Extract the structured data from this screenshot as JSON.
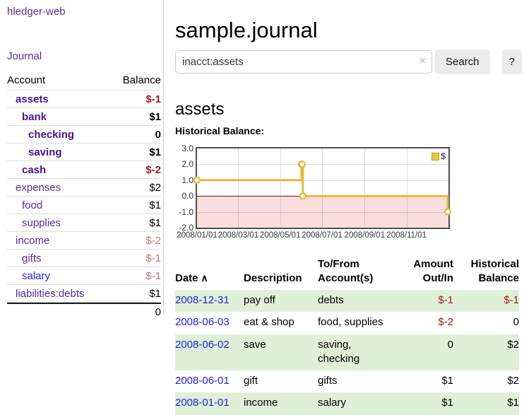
{
  "colors": {
    "link_purple": "#552e91",
    "matched_purple": "#4a1486",
    "link_blue": "#2222dd",
    "negative_red": "#9a1c1c",
    "negative_faded": "#c0706e",
    "row_stripe_green": "#dff0d8",
    "chart_line_gold": "#e3b944",
    "chart_negative_pink": "#fbdddd",
    "chart_zero_line": "#a00000",
    "button_gray": "#ececec"
  },
  "icons": {
    "sort_ascending": "∧",
    "clear_search": "×"
  },
  "sidebar": {
    "app_title": "hledger-web",
    "journal_label": "Journal",
    "accounts": {
      "headers": {
        "account": "Account",
        "balance": "Balance"
      },
      "rows": [
        {
          "name": "assets",
          "depth": 1,
          "match": true,
          "balance": "$-1",
          "balance_style": "neg-strong"
        },
        {
          "name": "bank",
          "depth": 2,
          "match": true,
          "balance": "$1",
          "balance_style": "plain"
        },
        {
          "name": "checking",
          "depth": 3,
          "match": true,
          "balance": "0",
          "balance_style": "plain"
        },
        {
          "name": "saving",
          "depth": 3,
          "match": true,
          "balance": "$1",
          "balance_style": "plain"
        },
        {
          "name": "cash",
          "depth": 2,
          "match": true,
          "balance": "$-2",
          "balance_style": "neg-strong"
        },
        {
          "name": "expenses",
          "depth": 1,
          "match": false,
          "balance": "$2",
          "balance_style": "plain"
        },
        {
          "name": "food",
          "depth": 2,
          "match": false,
          "balance": "$1",
          "balance_style": "plain"
        },
        {
          "name": "supplies",
          "depth": 2,
          "match": false,
          "balance": "$1",
          "balance_style": "plain"
        },
        {
          "name": "income",
          "depth": 1,
          "match": false,
          "balance": "$-2",
          "balance_style": "neg-faded"
        },
        {
          "name": "gifts",
          "depth": 2,
          "match": false,
          "balance": "$-1",
          "balance_style": "neg-faded"
        },
        {
          "name": "salary",
          "depth": 2,
          "match": false,
          "balance": "$-1",
          "balance_style": "neg-faded",
          "link_blue": true
        },
        {
          "name": "liabilities:debts",
          "depth": 1,
          "match": false,
          "balance": "$1",
          "balance_style": "plain"
        }
      ],
      "total": "0"
    }
  },
  "main": {
    "title": "sample.journal",
    "search": {
      "value": "inacct:assets",
      "button_label": "Search",
      "help_label": "?"
    },
    "account_heading": "assets",
    "chart_label": "Historical Balance:"
  },
  "chart_data": {
    "type": "line",
    "step": true,
    "title": "Historical Balance",
    "x_start": "2008-01-01",
    "x_domain_days": 366,
    "x_ticks": [
      {
        "label": "2008/01/01",
        "day": 0
      },
      {
        "label": "2008/03/01",
        "day": 60
      },
      {
        "label": "2008/05/01",
        "day": 121
      },
      {
        "label": "2008/07/01",
        "day": 182
      },
      {
        "label": "2008/09/01",
        "day": 244
      },
      {
        "label": "2008/11/01",
        "day": 305
      }
    ],
    "ylim": [
      -2,
      3
    ],
    "y_ticks": [
      "3.0",
      "2.0",
      "1.0",
      "0.0",
      "-1.0",
      "-2.0"
    ],
    "grid": true,
    "legend": {
      "position": "top-right",
      "label": "$"
    },
    "series": [
      {
        "name": "$",
        "color": "#e3b944",
        "points": [
          [
            "2008-01-01",
            1
          ],
          [
            "2008-06-01",
            2
          ],
          [
            "2008-06-02",
            2
          ],
          [
            "2008-06-03",
            0
          ],
          [
            "2008-12-31",
            -1
          ]
        ]
      }
    ]
  },
  "register": {
    "headers": {
      "date": "Date",
      "description": "Description",
      "accounts": "To/From Account(s)",
      "amount": "Amount Out/In",
      "balance": "Historical Balance"
    },
    "rows": [
      {
        "date": "2008-12-31",
        "description": "pay off",
        "accounts": "debts",
        "amount": "$-1",
        "amount_neg": true,
        "balance": "$-1",
        "balance_neg": true
      },
      {
        "date": "2008-06-03",
        "description": "eat & shop",
        "accounts": "food, supplies",
        "amount": "$-2",
        "amount_neg": true,
        "balance": "0",
        "balance_neg": false
      },
      {
        "date": "2008-06-02",
        "description": "save",
        "accounts": "saving, checking",
        "amount": "0",
        "amount_neg": false,
        "balance": "$2",
        "balance_neg": false
      },
      {
        "date": "2008-06-01",
        "description": "gift",
        "accounts": "gifts",
        "amount": "$1",
        "amount_neg": false,
        "balance": "$2",
        "balance_neg": false
      },
      {
        "date": "2008-01-01",
        "description": "income",
        "accounts": "salary",
        "amount": "$1",
        "amount_neg": false,
        "balance": "$1",
        "balance_neg": false
      }
    ]
  }
}
